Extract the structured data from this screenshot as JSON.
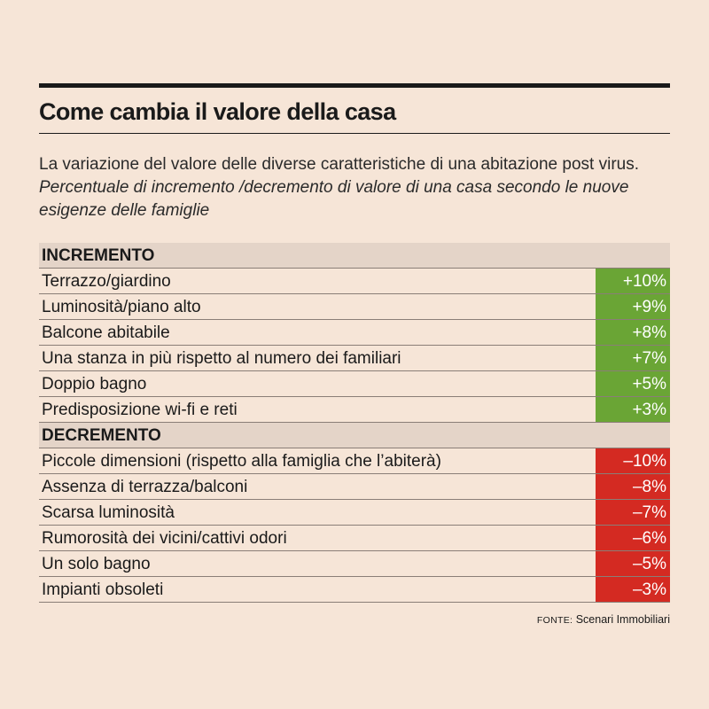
{
  "title": "Come cambia il valore della casa",
  "description": {
    "main": "La variazione del valore delle diverse caratteristiche di una abitazione post virus.",
    "sub": "Percentuale di incremento /decremento di valore di una casa secondo le nuove esigenze delle famiglie"
  },
  "source": {
    "label": "FONTE:",
    "text": "Scenari Immobiliari"
  },
  "colors": {
    "positive": "#6aa535",
    "negative": "#d42a22",
    "background": "#f6e5d7",
    "header": "#e4d4c8"
  },
  "chart_data": {
    "type": "table",
    "title": "Come cambia il valore della casa",
    "sections": [
      {
        "name": "INCREMENTO",
        "rows": [
          {
            "label": "Terrazzo/giardino",
            "value": 10,
            "display": "+10%"
          },
          {
            "label": "Luminosità/piano alto",
            "value": 9,
            "display": "+9%"
          },
          {
            "label": "Balcone abitabile",
            "value": 8,
            "display": "+8%"
          },
          {
            "label": "Una stanza in più rispetto al numero dei familiari",
            "value": 7,
            "display": "+7%"
          },
          {
            "label": "Doppio bagno",
            "value": 5,
            "display": "+5%"
          },
          {
            "label": "Predisposizione wi-fi e reti",
            "value": 3,
            "display": "+3%"
          }
        ]
      },
      {
        "name": "DECREMENTO",
        "rows": [
          {
            "label": "Piccole dimensioni  (rispetto alla famiglia che l’abiterà)",
            "value": -10,
            "display": "–10%"
          },
          {
            "label": "Assenza di terrazza/balconi",
            "value": -8,
            "display": "–8%"
          },
          {
            "label": "Scarsa luminosità",
            "value": -7,
            "display": "–7%"
          },
          {
            "label": "Rumorosità dei vicini/cattivi odori",
            "value": -6,
            "display": "–6%"
          },
          {
            "label": "Un solo bagno",
            "value": -5,
            "display": "–5%"
          },
          {
            "label": "Impianti obsoleti",
            "value": -3,
            "display": "–3%"
          }
        ]
      }
    ]
  }
}
